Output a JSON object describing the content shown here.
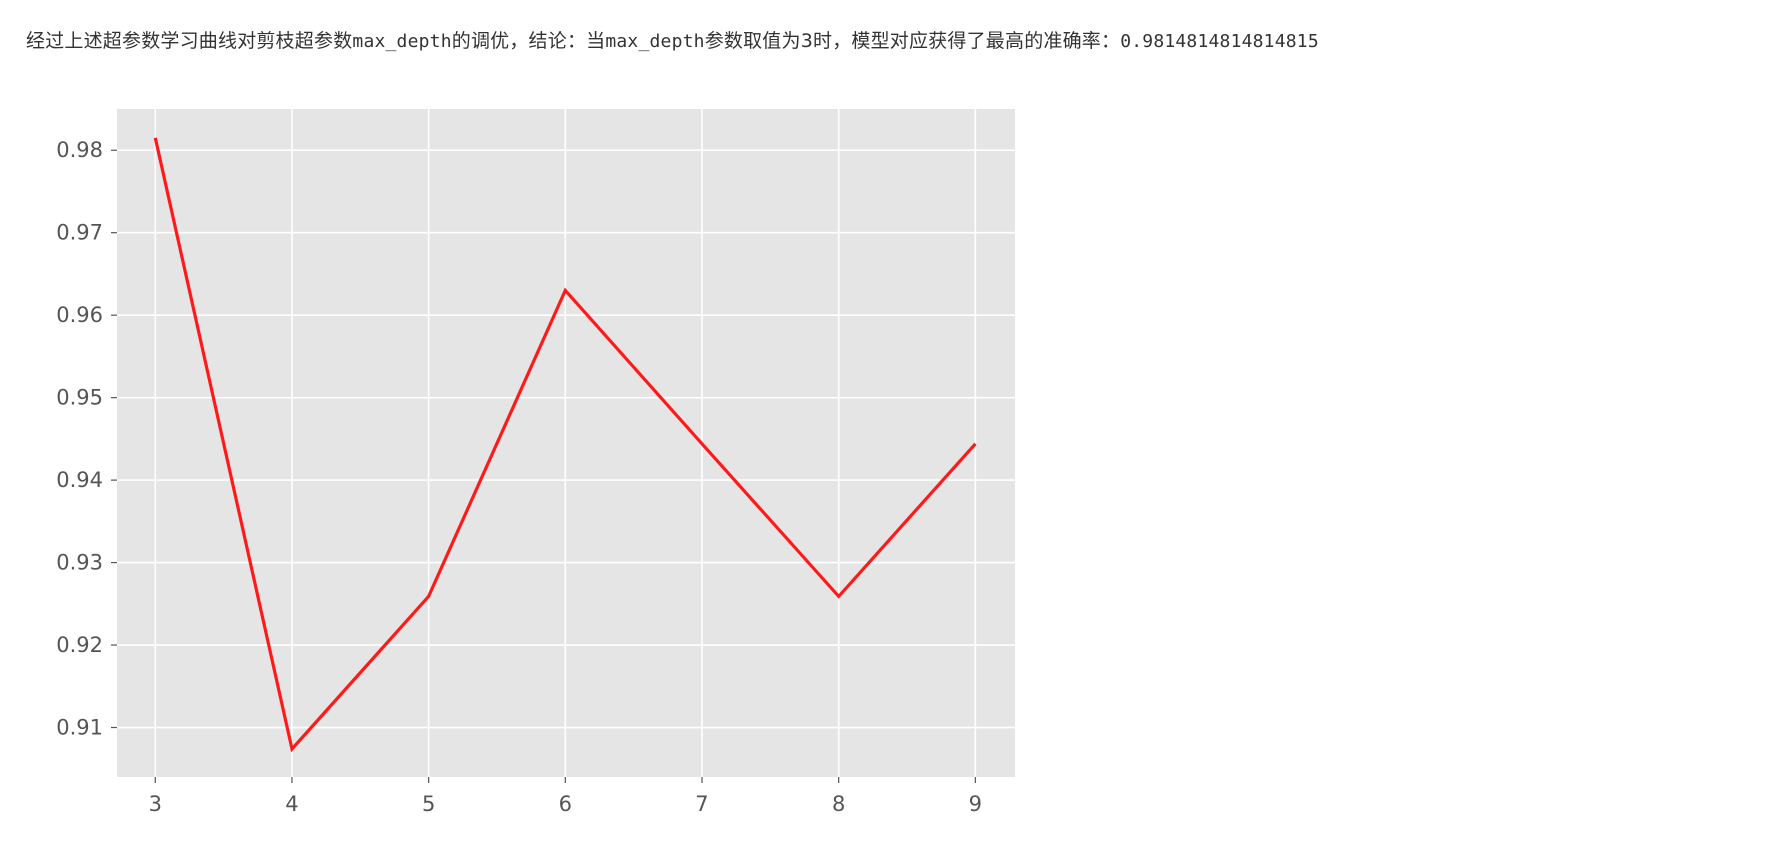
{
  "output_text": {
    "prefix": "经过上述超参数学习曲线对剪枝超参数",
    "param1": "max_depth",
    "middle": "的调优，结论：当",
    "param2": "max_depth",
    "suffix": "参数取值为3时，模型对应获得了最高的准确率：",
    "best_value": "0.9814814814814815"
  },
  "chart_data": {
    "type": "line",
    "x": [
      3,
      4,
      5,
      6,
      7,
      8,
      9
    ],
    "series": [
      {
        "values": [
          0.9815,
          0.9074,
          0.9259,
          0.963,
          0.9444,
          0.9259,
          0.9444
        ],
        "color": "#ff1a1a"
      }
    ],
    "xticks": [
      "3",
      "4",
      "5",
      "6",
      "7",
      "8",
      "9"
    ],
    "yticks": [
      "0.91",
      "0.92",
      "0.93",
      "0.94",
      "0.95",
      "0.96",
      "0.97",
      "0.98"
    ],
    "ytick_values": [
      0.91,
      0.92,
      0.93,
      0.94,
      0.95,
      0.96,
      0.97,
      0.98
    ],
    "xlim": [
      2.72,
      9.29
    ],
    "ylim": [
      0.904,
      0.985
    ],
    "grid": true,
    "background": "#e5e5e5",
    "grid_color": "#ffffff",
    "title": "",
    "xlabel": "",
    "ylabel": ""
  }
}
